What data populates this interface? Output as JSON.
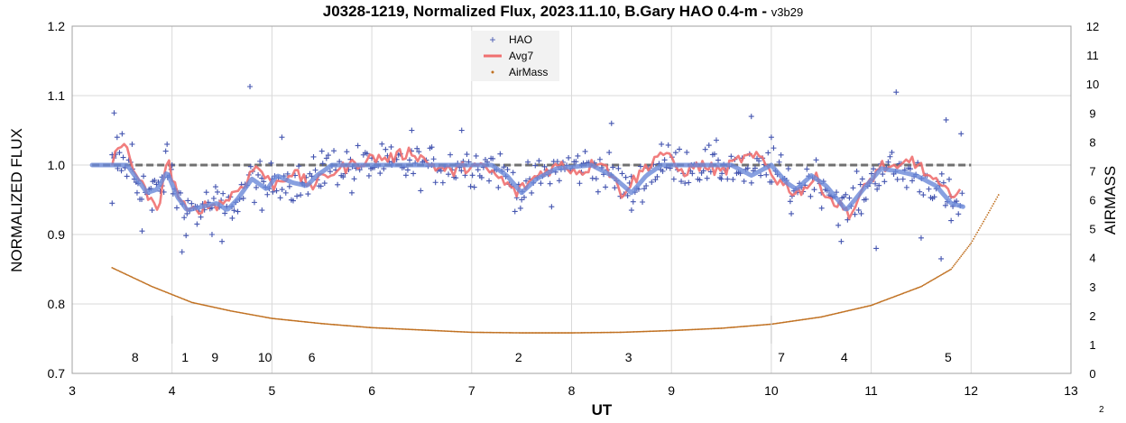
{
  "chart_data": {
    "type": "scatter",
    "title": "J0328-1219, Normalized Flux, 2023.11.10, B.Gary HAO 0.4-m - ",
    "title_version": "v3b29",
    "xlabel": "UT",
    "ylabel": "NORMALIZED FLUX",
    "y2label": "AIRMASS",
    "xlim": [
      3,
      13
    ],
    "ylim": [
      0.7,
      1.2
    ],
    "y2lim": [
      0,
      12
    ],
    "x_ticks": [
      "3",
      "4",
      "5",
      "6",
      "7",
      "8",
      "9",
      "10",
      "11",
      "12",
      "13"
    ],
    "y_ticks": [
      "0.7",
      "0.8",
      "0.9",
      "1.0",
      "1.1",
      "1.2"
    ],
    "y2_ticks": [
      "0",
      "1",
      "2",
      "3",
      "4",
      "5",
      "6",
      "7",
      "8",
      "9",
      "10",
      "11",
      "12"
    ],
    "grid": true,
    "legend_position": "top-center",
    "legend": [
      "HAO",
      "Avg7",
      "AirMass"
    ],
    "colors": {
      "hao": "#4455b0",
      "avg7": "#f07070",
      "airmass": "#c07020",
      "model": "#6a88d8",
      "baseline": "#707070"
    },
    "series_hao_sample": [
      [
        3.4,
        0.945
      ],
      [
        3.42,
        1.075
      ],
      [
        3.45,
        1.04
      ],
      [
        3.5,
        1.045
      ],
      [
        3.6,
        1.03
      ],
      [
        3.65,
        0.96
      ],
      [
        3.7,
        0.905
      ],
      [
        3.8,
        0.935
      ],
      [
        3.9,
        0.97
      ],
      [
        3.95,
        1.03
      ],
      [
        4.0,
        1.0
      ],
      [
        4.1,
        0.875
      ],
      [
        4.15,
        0.93
      ],
      [
        4.25,
        0.915
      ],
      [
        4.4,
        0.9
      ],
      [
        4.5,
        0.89
      ],
      [
        4.6,
        0.94
      ],
      [
        4.78,
        1.113
      ],
      [
        4.9,
        0.935
      ],
      [
        5.0,
        0.98
      ],
      [
        5.1,
        1.04
      ],
      [
        5.3,
        0.975
      ],
      [
        5.5,
        1.02
      ],
      [
        5.8,
        0.96
      ],
      [
        6.0,
        1.01
      ],
      [
        6.2,
        1.0
      ],
      [
        6.4,
        1.05
      ],
      [
        6.6,
        1.0
      ],
      [
        6.9,
        1.05
      ],
      [
        7.2,
        0.99
      ],
      [
        7.5,
        0.95
      ],
      [
        7.8,
        0.94
      ],
      [
        8.1,
        1.0
      ],
      [
        8.4,
        1.06
      ],
      [
        8.6,
        0.935
      ],
      [
        8.9,
        1.03
      ],
      [
        9.2,
        1.0
      ],
      [
        9.5,
        0.98
      ],
      [
        9.8,
        1.07
      ],
      [
        10.0,
        1.04
      ],
      [
        10.2,
        0.93
      ],
      [
        10.5,
        0.96
      ],
      [
        10.7,
        0.89
      ],
      [
        10.9,
        0.93
      ],
      [
        11.05,
        0.88
      ],
      [
        11.25,
        1.105
      ],
      [
        11.5,
        0.895
      ],
      [
        11.7,
        0.865
      ],
      [
        11.75,
        1.065
      ],
      [
        11.8,
        0.92
      ],
      [
        11.9,
        1.045
      ]
    ],
    "series_avg7_sample": [
      [
        3.4,
        1.0
      ],
      [
        3.45,
        1.03
      ],
      [
        3.55,
        1.02
      ],
      [
        3.7,
        0.97
      ],
      [
        3.85,
        0.93
      ],
      [
        3.95,
        1.01
      ],
      [
        4.05,
        0.96
      ],
      [
        4.15,
        0.93
      ],
      [
        4.3,
        0.94
      ],
      [
        4.5,
        0.945
      ],
      [
        4.7,
        0.97
      ],
      [
        4.85,
        1.0
      ],
      [
        5.0,
        0.97
      ],
      [
        5.2,
        0.99
      ],
      [
        5.4,
        0.97
      ],
      [
        5.6,
        0.99
      ],
      [
        5.8,
        1.0
      ],
      [
        6.0,
        1.01
      ],
      [
        6.2,
        1.01
      ],
      [
        6.4,
        1.02
      ],
      [
        6.6,
        1.0
      ],
      [
        6.8,
        0.99
      ],
      [
        7.0,
        1.0
      ],
      [
        7.2,
        0.99
      ],
      [
        7.45,
        0.96
      ],
      [
        7.7,
        0.99
      ],
      [
        7.9,
        1.0
      ],
      [
        8.1,
        0.99
      ],
      [
        8.3,
        1.01
      ],
      [
        8.5,
        0.96
      ],
      [
        8.7,
        0.99
      ],
      [
        8.9,
        1.02
      ],
      [
        9.1,
        0.99
      ],
      [
        9.3,
        1.0
      ],
      [
        9.5,
        0.99
      ],
      [
        9.7,
        1.01
      ],
      [
        9.9,
        1.01
      ],
      [
        10.05,
        0.98
      ],
      [
        10.25,
        0.96
      ],
      [
        10.45,
        0.98
      ],
      [
        10.6,
        0.95
      ],
      [
        10.8,
        0.93
      ],
      [
        10.95,
        0.97
      ],
      [
        11.1,
        1.0
      ],
      [
        11.25,
        0.99
      ],
      [
        11.4,
        1.01
      ],
      [
        11.6,
        0.98
      ],
      [
        11.75,
        0.96
      ],
      [
        11.9,
        0.965
      ]
    ],
    "series_airmass_sample": [
      [
        3.4,
        3.65
      ],
      [
        3.8,
        3.0
      ],
      [
        4.2,
        2.45
      ],
      [
        4.6,
        2.15
      ],
      [
        5.0,
        1.9
      ],
      [
        5.5,
        1.72
      ],
      [
        6.0,
        1.58
      ],
      [
        6.5,
        1.5
      ],
      [
        7.0,
        1.42
      ],
      [
        7.5,
        1.4
      ],
      [
        8.0,
        1.4
      ],
      [
        8.5,
        1.42
      ],
      [
        9.0,
        1.48
      ],
      [
        9.5,
        1.56
      ],
      [
        10.0,
        1.7
      ],
      [
        10.5,
        1.95
      ],
      [
        11.0,
        2.35
      ],
      [
        11.5,
        3.0
      ],
      [
        11.8,
        3.6
      ],
      [
        12.0,
        4.5
      ],
      [
        12.15,
        5.4
      ],
      [
        12.28,
        6.2
      ]
    ],
    "model_sample": [
      [
        3.2,
        1.0
      ],
      [
        3.55,
        1.0
      ],
      [
        3.75,
        0.96
      ],
      [
        3.85,
        0.965
      ],
      [
        3.95,
        0.99
      ],
      [
        4.05,
        0.955
      ],
      [
        4.15,
        0.935
      ],
      [
        4.3,
        0.94
      ],
      [
        4.45,
        0.945
      ],
      [
        4.55,
        0.935
      ],
      [
        4.65,
        0.95
      ],
      [
        4.8,
        0.98
      ],
      [
        4.95,
        0.965
      ],
      [
        5.05,
        0.985
      ],
      [
        5.2,
        0.975
      ],
      [
        5.35,
        0.97
      ],
      [
        5.45,
        0.985
      ],
      [
        5.6,
        1.0
      ],
      [
        7.2,
        1.0
      ],
      [
        7.35,
        0.985
      ],
      [
        7.5,
        0.96
      ],
      [
        7.65,
        0.98
      ],
      [
        7.85,
        0.995
      ],
      [
        8.2,
        1.0
      ],
      [
        8.4,
        0.985
      ],
      [
        8.6,
        0.96
      ],
      [
        8.75,
        0.985
      ],
      [
        8.9,
        1.0
      ],
      [
        9.6,
        1.0
      ],
      [
        9.8,
        0.985
      ],
      [
        10.0,
        1.0
      ],
      [
        10.15,
        0.975
      ],
      [
        10.25,
        0.965
      ],
      [
        10.4,
        0.985
      ],
      [
        10.55,
        0.97
      ],
      [
        10.75,
        0.935
      ],
      [
        10.95,
        0.97
      ],
      [
        11.1,
        0.995
      ],
      [
        11.3,
        0.99
      ],
      [
        11.45,
        0.985
      ],
      [
        11.65,
        0.97
      ],
      [
        11.8,
        0.945
      ],
      [
        11.92,
        0.94
      ]
    ],
    "baseline": {
      "x": [
        3.2,
        12.0
      ],
      "y": 1.0
    },
    "annotations": [
      {
        "label": "8",
        "x": 3.63
      },
      {
        "label": "1",
        "x": 4.13
      },
      {
        "label": "9",
        "x": 4.43
      },
      {
        "label": "10",
        "x": 4.93
      },
      {
        "label": "6",
        "x": 5.4
      },
      {
        "label": "2",
        "x": 7.47
      },
      {
        "label": "3",
        "x": 8.57
      },
      {
        "label": "7",
        "x": 10.1
      },
      {
        "label": "4",
        "x": 10.73
      },
      {
        "label": "5",
        "x": 11.77
      }
    ]
  },
  "page_number": "2"
}
